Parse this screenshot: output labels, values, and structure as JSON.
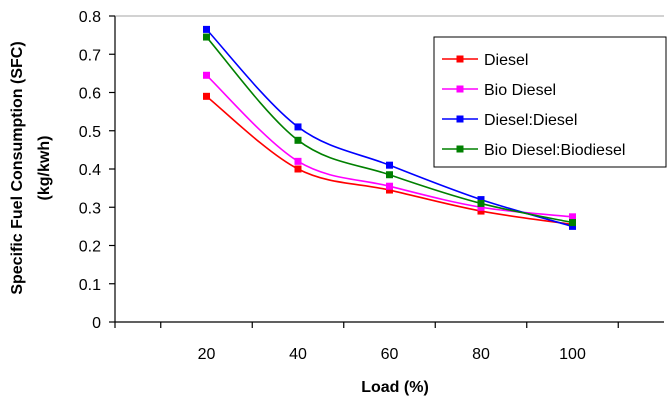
{
  "chart_data": {
    "type": "line",
    "xlabel": "Load (%)",
    "ylabel_line1": "Specific Fuel Consumption (SFC)",
    "ylabel_line2": "(kg/kwh)",
    "xlim": [
      0,
      120
    ],
    "ylim": [
      0,
      0.8
    ],
    "x_ticks": [
      20,
      40,
      60,
      80,
      100
    ],
    "y_ticks": [
      0,
      0.1,
      0.2,
      0.3,
      0.4,
      0.5,
      0.6,
      0.7,
      0.8
    ],
    "y_tick_labels": [
      "0",
      "0.1",
      "0.2",
      "0.3",
      "0.4",
      "0.5",
      "0.6",
      "0.7",
      "0.8"
    ],
    "grid": false,
    "legend_position": "top-right",
    "series": [
      {
        "name": "Diesel",
        "color": "#ff0000",
        "x": [
          20,
          40,
          60,
          80,
          100
        ],
        "values": [
          0.59,
          0.4,
          0.345,
          0.29,
          0.255
        ]
      },
      {
        "name": "Bio Diesel",
        "color": "#ff00ff",
        "x": [
          20,
          40,
          60,
          80,
          100
        ],
        "values": [
          0.645,
          0.42,
          0.355,
          0.3,
          0.275
        ]
      },
      {
        "name": "Diesel:Diesel",
        "color": "#0000ff",
        "x": [
          20,
          40,
          60,
          80,
          100
        ],
        "values": [
          0.765,
          0.51,
          0.41,
          0.32,
          0.25
        ]
      },
      {
        "name": "Bio Diesel:Biodiesel",
        "color": "#008000",
        "x": [
          20,
          40,
          60,
          80,
          100
        ],
        "values": [
          0.745,
          0.475,
          0.385,
          0.31,
          0.26
        ]
      }
    ]
  }
}
